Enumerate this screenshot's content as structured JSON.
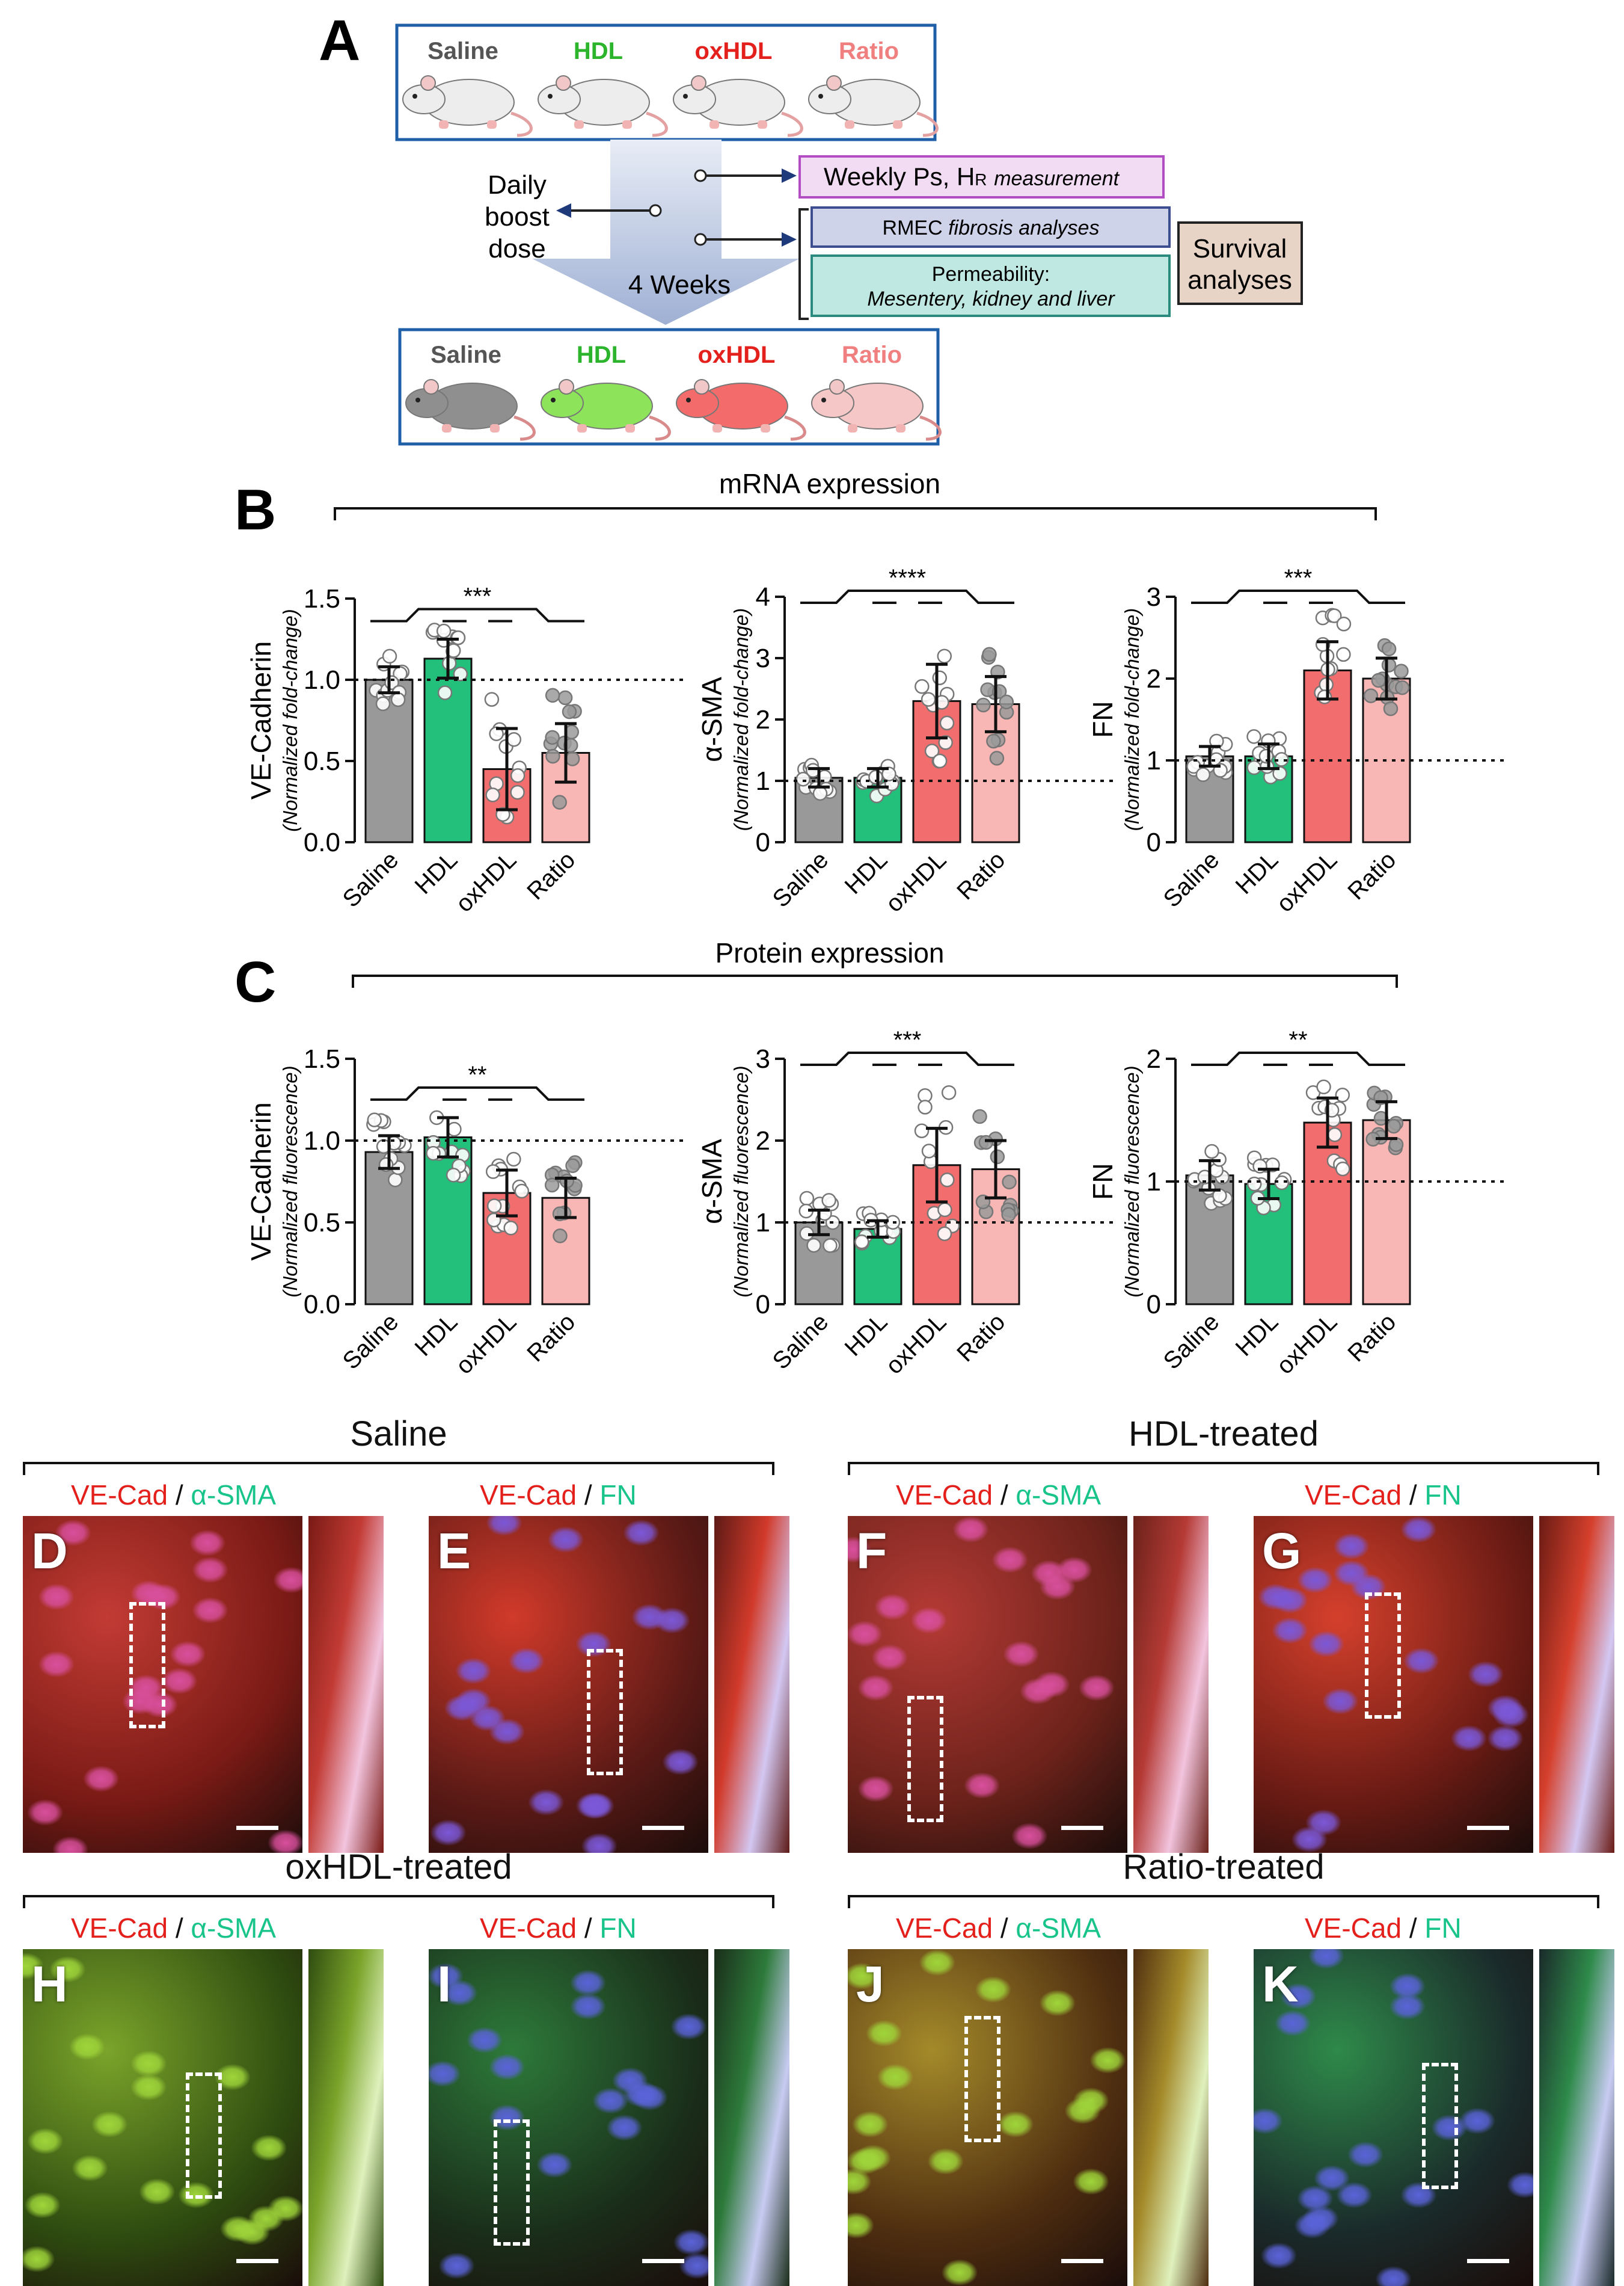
{
  "panelA": {
    "letter": "A",
    "groups": [
      {
        "label": "Saline",
        "color": "#555555"
      },
      {
        "label": "HDL",
        "color": "#2cb52c"
      },
      {
        "label": "oxHDL",
        "color": "#e3201b"
      },
      {
        "label": "Ratio",
        "color": "#f08080"
      }
    ],
    "daily": [
      "Daily",
      "boost",
      "dose"
    ],
    "weeks": "4 Weeks",
    "weekly_main": "Weekly Ps, H",
    "weekly_sub": "R",
    "weekly_italic": "measurement",
    "rmec_main": "RMEC ",
    "rmec_italic": "fibrosis analyses",
    "perm_line1": "Permeability:",
    "perm_line2": "Mesentery, kidney and liver",
    "survival": [
      "Survival",
      "analyses"
    ]
  },
  "panelB": {
    "letter": "B",
    "title": "mRNA expression",
    "ylabel_sub": "(Normalized fold-change)"
  },
  "panelC": {
    "letter": "C",
    "title": "Protein expression",
    "ylabel_sub": "(Normalized fluorescence)"
  },
  "chart_data": [
    {
      "id": "B1",
      "type": "bar",
      "panel": "B",
      "categories": [
        "Saline",
        "HDL",
        "oxHDL",
        "Ratio"
      ],
      "values": [
        1.0,
        1.13,
        0.45,
        0.55
      ],
      "errors": [
        0.08,
        0.12,
        0.25,
        0.18
      ],
      "ylabel": "VE-Cadherin",
      "ylabel_sub": "(Normalized fold-change)",
      "ylim": [
        0,
        1.5
      ],
      "ticks": [
        0,
        0.5,
        1.0,
        1.5
      ],
      "tick_labels": [
        "0.0",
        "0.5",
        "1.0",
        "1.5"
      ],
      "reference_line": 1,
      "significance": "***",
      "colors": [
        "#999999",
        "#22c07a",
        "#f26d6d",
        "#f8b6b4"
      ]
    },
    {
      "id": "B2",
      "type": "bar",
      "panel": "B",
      "categories": [
        "Saline",
        "HDL",
        "oxHDL",
        "Ratio"
      ],
      "values": [
        1.05,
        1.05,
        2.3,
        2.25
      ],
      "errors": [
        0.15,
        0.15,
        0.6,
        0.45
      ],
      "ylabel": "α-SMA",
      "ylabel_sub": "(Normalized fold-change)",
      "ylim": [
        0,
        4
      ],
      "ticks": [
        0,
        1,
        2,
        3,
        4
      ],
      "tick_labels": [
        "0",
        "1",
        "2",
        "3",
        "4"
      ],
      "reference_line": 1,
      "significance": "****",
      "colors": [
        "#999999",
        "#22c07a",
        "#f26d6d",
        "#f8b6b4"
      ]
    },
    {
      "id": "B3",
      "type": "bar",
      "panel": "B",
      "categories": [
        "Saline",
        "HDL",
        "oxHDL",
        "Ratio"
      ],
      "values": [
        1.05,
        1.05,
        2.1,
        2.0
      ],
      "errors": [
        0.12,
        0.15,
        0.35,
        0.25
      ],
      "ylabel": "FN",
      "ylabel_sub": "(Normalized fold-change)",
      "ylim": [
        0,
        3
      ],
      "ticks": [
        0,
        1,
        2,
        3
      ],
      "tick_labels": [
        "0",
        "1",
        "2",
        "3"
      ],
      "reference_line": 1,
      "significance": "***",
      "colors": [
        "#999999",
        "#22c07a",
        "#f26d6d",
        "#f8b6b4"
      ]
    },
    {
      "id": "C1",
      "type": "bar",
      "panel": "C",
      "categories": [
        "Saline",
        "HDL",
        "oxHDL",
        "Ratio"
      ],
      "values": [
        0.93,
        1.02,
        0.68,
        0.65
      ],
      "errors": [
        0.1,
        0.12,
        0.14,
        0.12
      ],
      "ylabel": "VE-Cadherin",
      "ylabel_sub": "(Normalized fluorescence)",
      "ylim": [
        0,
        1.5
      ],
      "ticks": [
        0,
        0.5,
        1.0,
        1.5
      ],
      "tick_labels": [
        "0.0",
        "0.5",
        "1.0",
        "1.5"
      ],
      "reference_line": 1,
      "significance": "**",
      "colors": [
        "#999999",
        "#22c07a",
        "#f26d6d",
        "#f8b6b4"
      ]
    },
    {
      "id": "C2",
      "type": "bar",
      "panel": "C",
      "categories": [
        "Saline",
        "HDL",
        "oxHDL",
        "Ratio"
      ],
      "values": [
        1.0,
        0.92,
        1.7,
        1.65
      ],
      "errors": [
        0.15,
        0.1,
        0.45,
        0.35
      ],
      "ylabel": "α-SMA",
      "ylabel_sub": "(Normalized fluorescence)",
      "ylim": [
        0,
        3
      ],
      "ticks": [
        0,
        1,
        2,
        3
      ],
      "tick_labels": [
        "0",
        "1",
        "2",
        "3"
      ],
      "reference_line": 1,
      "significance": "***",
      "colors": [
        "#999999",
        "#22c07a",
        "#f26d6d",
        "#f8b6b4"
      ]
    },
    {
      "id": "C3",
      "type": "bar",
      "panel": "C",
      "categories": [
        "Saline",
        "HDL",
        "oxHDL",
        "Ratio"
      ],
      "values": [
        1.05,
        0.98,
        1.48,
        1.5
      ],
      "errors": [
        0.12,
        0.12,
        0.2,
        0.15
      ],
      "ylabel": "FN",
      "ylabel_sub": "(Normalized fluorescence)",
      "ylim": [
        0,
        2
      ],
      "ticks": [
        0,
        1,
        2
      ],
      "tick_labels": [
        "0",
        "1",
        "2"
      ],
      "reference_line": 1,
      "significance": "**",
      "colors": [
        "#999999",
        "#22c07a",
        "#f26d6d",
        "#f8b6b4"
      ]
    }
  ],
  "micrographs": {
    "groups": [
      {
        "title": "Saline"
      },
      {
        "title": "HDL-treated"
      },
      {
        "title": "oxHDL-treated"
      },
      {
        "title": "Ratio-treated"
      }
    ],
    "ve_cad": "VE-Cad",
    "slash": " / ",
    "asma": "α-SMA",
    "fn": "FN",
    "letters": [
      "D",
      "E",
      "F",
      "G",
      "H",
      "I",
      "J",
      "K"
    ]
  }
}
